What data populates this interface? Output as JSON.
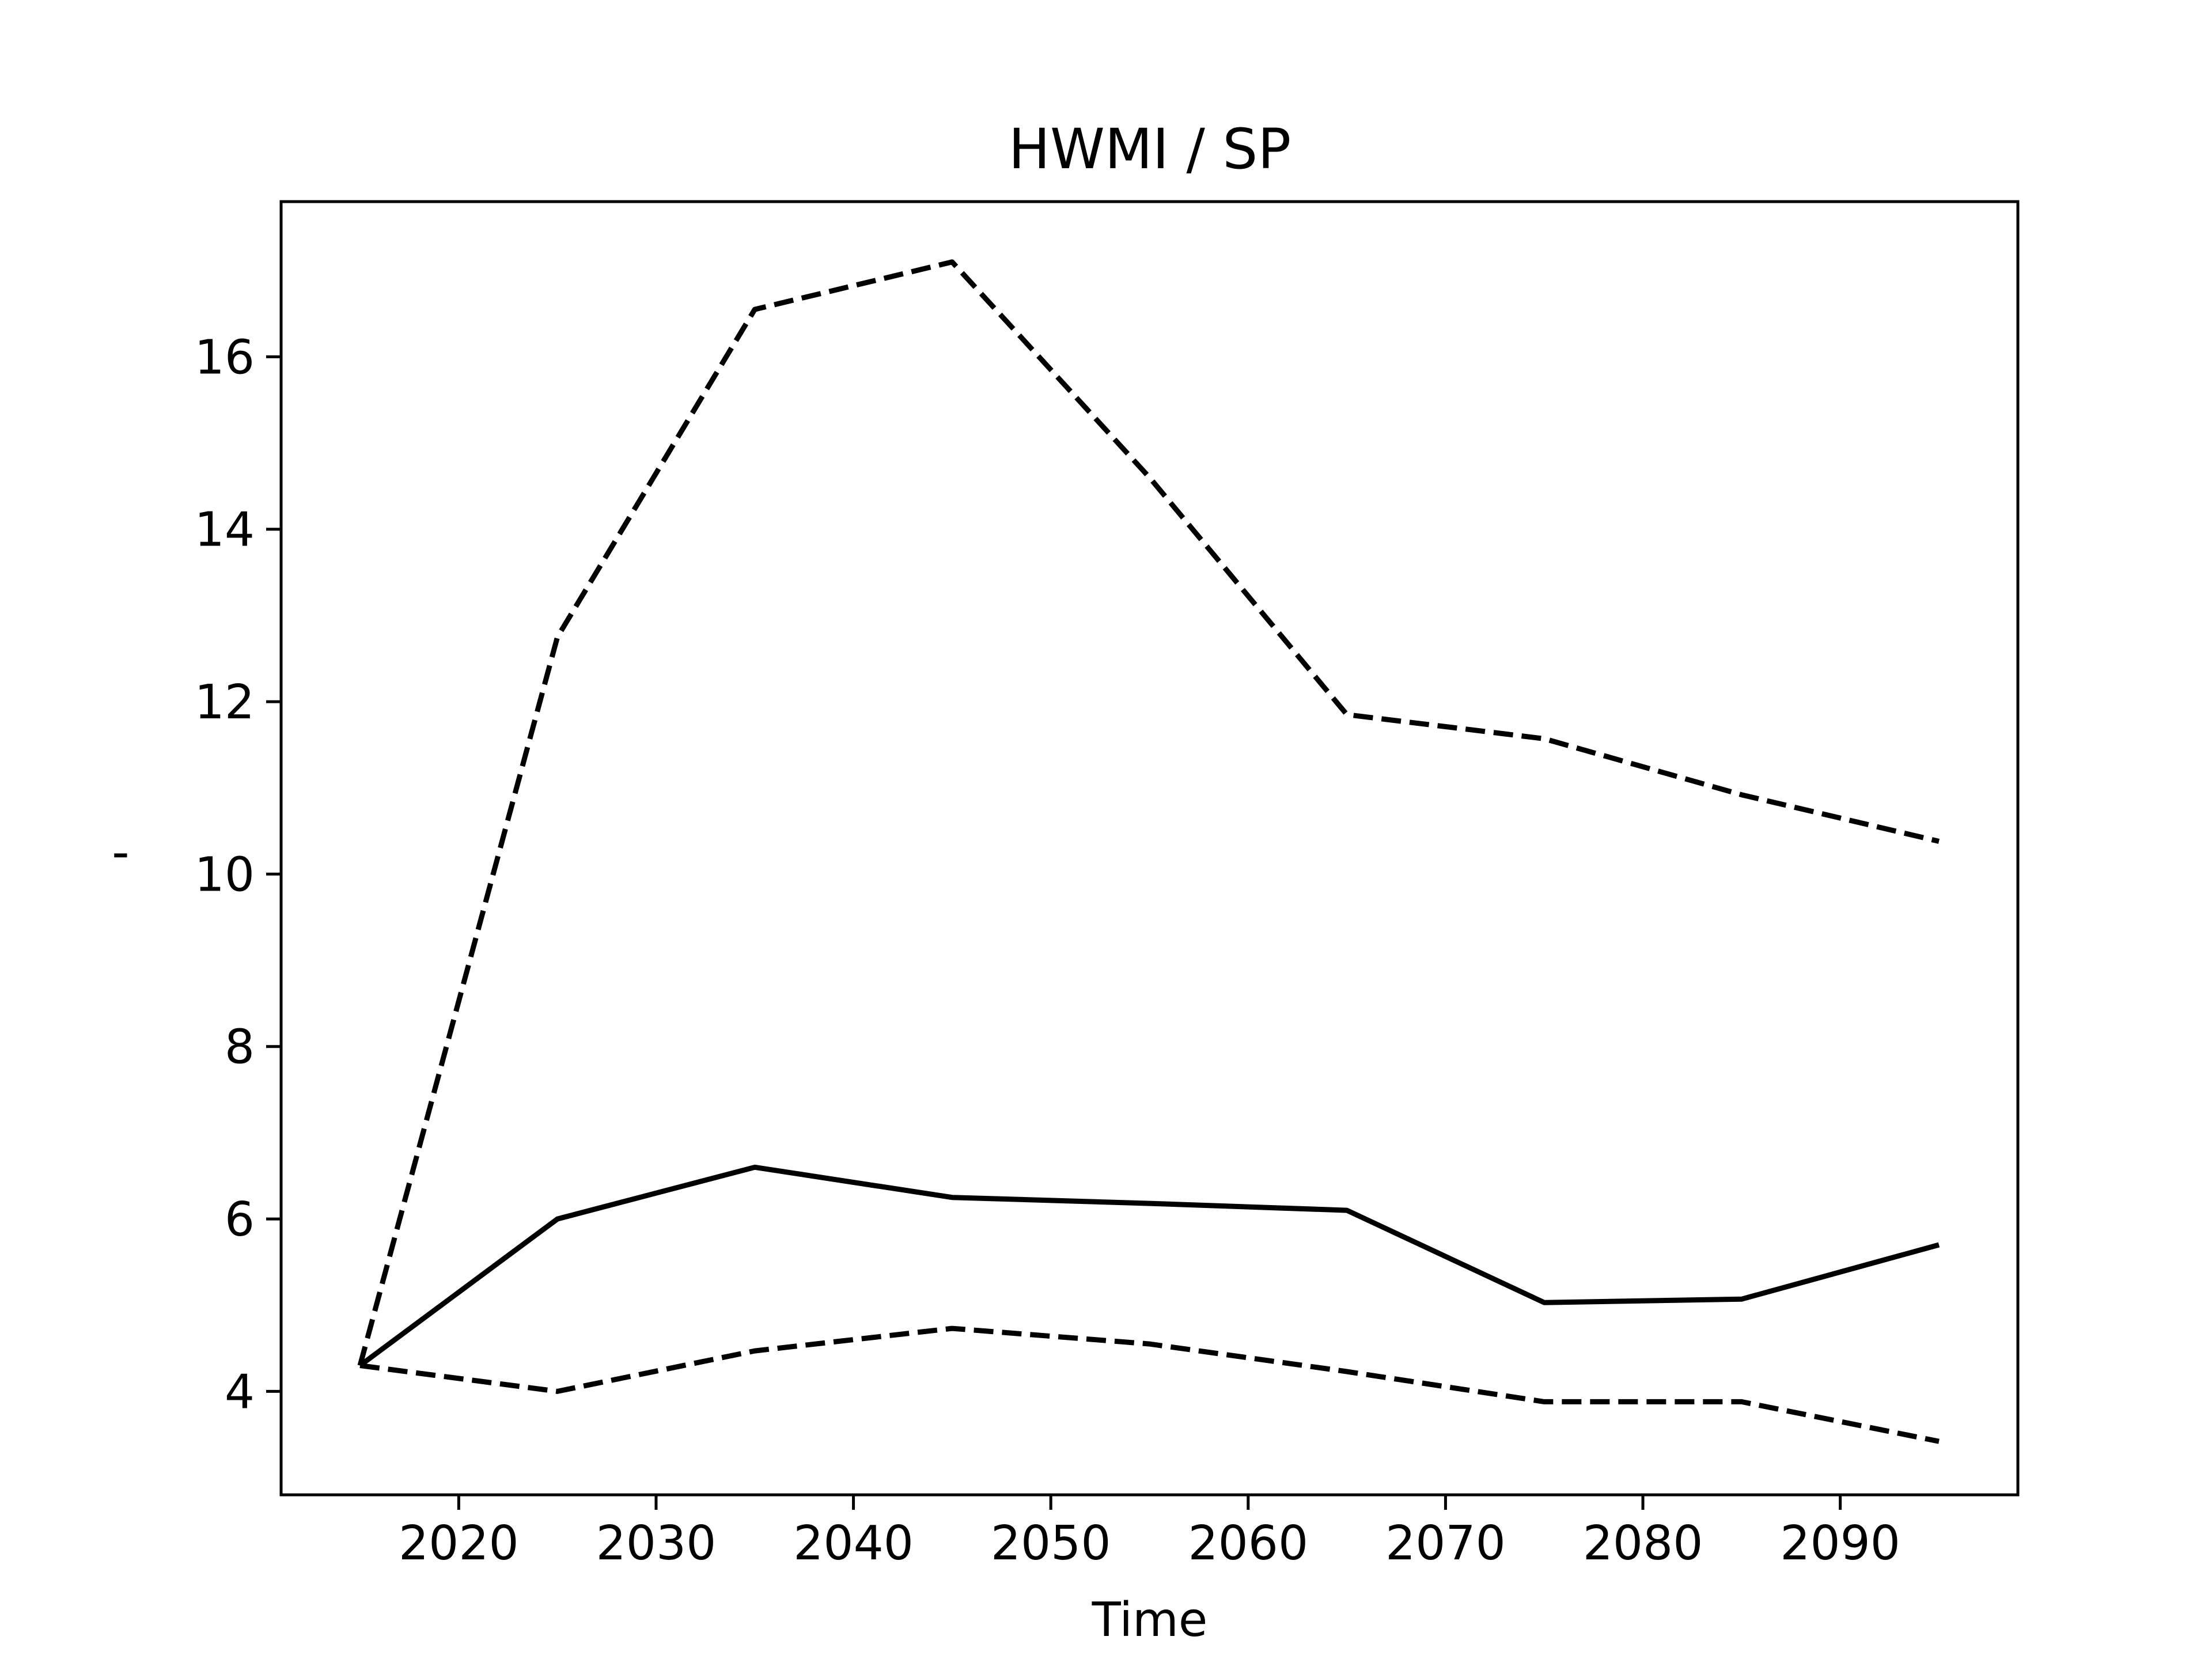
{
  "chart_data": {
    "type": "line",
    "title": "HWMI / SP",
    "xlabel": "Time",
    "ylabel": "'",
    "xlim": [
      2011,
      2099
    ],
    "ylim": [
      2.8,
      17.8
    ],
    "xticks": [
      2020,
      2030,
      2040,
      2050,
      2060,
      2070,
      2080,
      2090
    ],
    "yticks": [
      4,
      6,
      8,
      10,
      12,
      14,
      16
    ],
    "grid": false,
    "x": [
      2015,
      2025,
      2035,
      2045,
      2055,
      2065,
      2075,
      2085,
      2095
    ],
    "series": [
      {
        "style": "solid",
        "color": "#000000",
        "values": [
          4.3,
          6.0,
          6.6,
          6.25,
          6.18,
          6.1,
          5.03,
          5.07,
          5.7
        ]
      },
      {
        "style": "dashed",
        "color": "#000000",
        "values": [
          4.3,
          12.75,
          16.55,
          17.1,
          14.6,
          11.85,
          11.57,
          10.92,
          10.38
        ]
      },
      {
        "style": "dashed",
        "color": "#000000",
        "values": [
          4.3,
          4.0,
          4.47,
          4.73,
          4.55,
          4.23,
          3.88,
          3.88,
          3.42
        ]
      }
    ]
  }
}
